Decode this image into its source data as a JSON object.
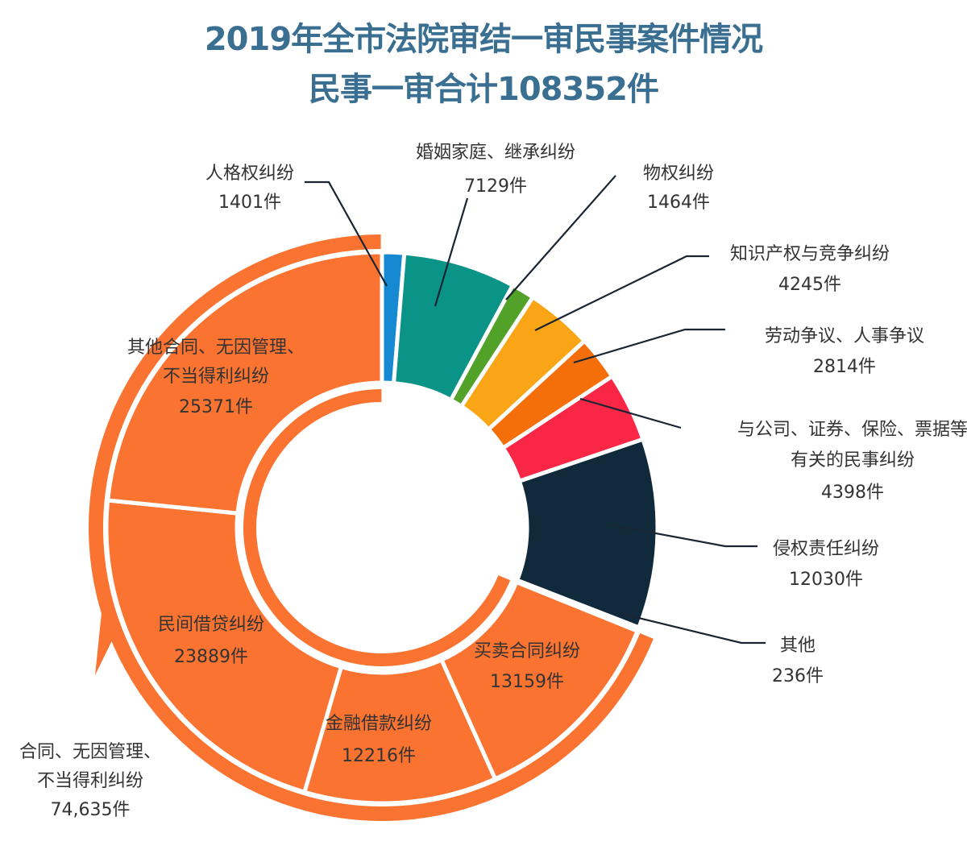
{
  "chart_data": {
    "type": "pie",
    "subtype": "donut",
    "title": "2019年全市法院审结一审民事案件情况",
    "subtitle": "民事一审合计108352件",
    "total": 108352,
    "unit": "件",
    "start": "top",
    "direction": "clockwise",
    "slices": [
      {
        "name": "人格权纠纷",
        "value": 1401,
        "value_label": "1401件",
        "color": "#1589d2",
        "label_pos": "outside"
      },
      {
        "name": "婚姻家庭、继承纠纷",
        "value": 7129,
        "value_label": "7129件",
        "color": "#0a9488",
        "label_pos": "outside"
      },
      {
        "name": "物权纠纷",
        "value": 1464,
        "value_label": "1464件",
        "color": "#52a22a",
        "label_pos": "outside"
      },
      {
        "name": "知识产权与竞争纠纷",
        "value": 4245,
        "value_label": "4245件",
        "color": "#f9a515",
        "label_pos": "outside"
      },
      {
        "name": "劳动争议、人事争议",
        "value": 2814,
        "value_label": "2814件",
        "color": "#f46e0a",
        "label_pos": "outside"
      },
      {
        "name": "与公司、证券、保险、票据等有关的民事纠纷",
        "name_lines": [
          "与公司、证券、保险、票据等",
          "有关的民事纠纷"
        ],
        "value": 4398,
        "value_label": "4398件",
        "color": "#f92645",
        "label_pos": "outside"
      },
      {
        "name": "侵权责任纠纷",
        "value": 12030,
        "value_label": "12030件",
        "color": "#10293b",
        "label_pos": "outside"
      },
      {
        "name": "其他",
        "value": 236,
        "value_label": "236件",
        "color": "#e6e6e6",
        "label_pos": "outside"
      },
      {
        "name": "买卖合同纠纷",
        "value": 13159,
        "value_label": "13159件",
        "color": "#fb7330",
        "label_pos": "inside",
        "group": "contract"
      },
      {
        "name": "金融借款纠纷",
        "value": 12216,
        "value_label": "12216件",
        "color": "#fb7330",
        "label_pos": "inside",
        "group": "contract"
      },
      {
        "name": "民间借贷纠纷",
        "value": 23889,
        "value_label": "23889件",
        "color": "#fb7330",
        "label_pos": "inside",
        "group": "contract"
      },
      {
        "name": "其他合同、无因管理、不当得利纠纷",
        "name_lines": [
          "其他合同、无因管理、",
          "不当得利纠纷"
        ],
        "value": 25371,
        "value_label": "25371件",
        "color": "#fb7330",
        "label_pos": "inside",
        "group": "contract"
      }
    ],
    "group_annotation": {
      "name_lines": [
        "合同、无因管理、",
        "不当得利纠纷"
      ],
      "value_label": "74,635件",
      "value": 74635,
      "color": "#fb7330"
    }
  }
}
